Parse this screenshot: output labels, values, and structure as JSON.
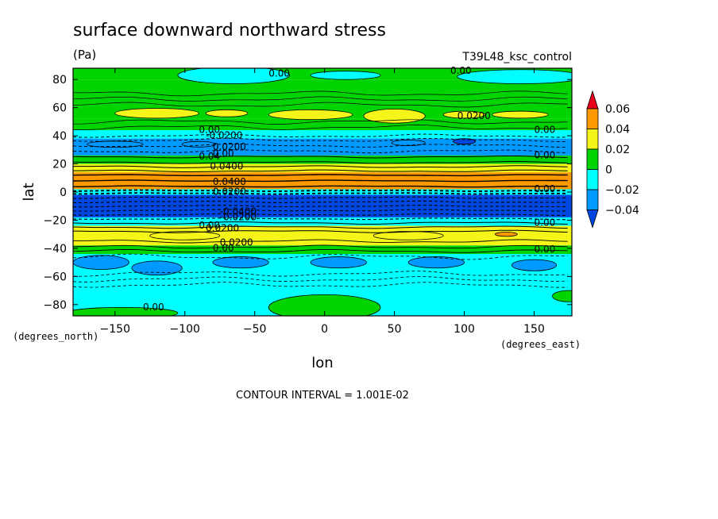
{
  "chart_data": {
    "type": "heatmap",
    "title": "surface downward northward stress",
    "units": "(Pa)",
    "dataset": "T39L48_ksc_control",
    "xlabel": "lon",
    "ylabel": "lat",
    "x_units": "(degrees_east)",
    "y_units": "(degrees_north)",
    "xlim": [
      -180,
      177
    ],
    "ylim": [
      -88,
      88
    ],
    "x_ticks": [
      -150,
      -100,
      -50,
      0,
      50,
      100,
      150
    ],
    "y_ticks": [
      -80,
      -60,
      -40,
      -20,
      0,
      20,
      40,
      60,
      80
    ],
    "footer": "CONTOUR INTERVAL = 1.001E-02",
    "colorbar": {
      "levels": [
        "0.06",
        "0.04",
        "0.02",
        "0",
        "−0.02",
        "−0.04"
      ],
      "colors": {
        "above_0.06": "#e8001c",
        "0.04_to_0.06": "#ff9900",
        "0.02_to_0.04": "#f5f51a",
        "0_to_0.02": "#00d400",
        "-0.02_to_0": "#00ffff",
        "-0.04_to_-0.02": "#0099ff",
        "below_-0.04": "#0047e0"
      }
    },
    "zonal_bands": [
      {
        "lat_range": [
          80,
          88
        ],
        "value": 0.01
      },
      {
        "lat_range": [
          64,
          80
        ],
        "value": 0.005
      },
      {
        "lat_range": [
          52,
          64
        ],
        "value": 0.02
      },
      {
        "lat_range": [
          44,
          52
        ],
        "value": 0.01
      },
      {
        "lat_range": [
          38,
          44
        ],
        "value": -0.005
      },
      {
        "lat_range": [
          26,
          38
        ],
        "value": -0.025
      },
      {
        "lat_range": [
          20,
          26
        ],
        "value": 0.005
      },
      {
        "lat_range": [
          14,
          20
        ],
        "value": 0.025
      },
      {
        "lat_range": [
          2,
          14
        ],
        "value": 0.045
      },
      {
        "lat_range": [
          -2,
          2
        ],
        "value": -0.01
      },
      {
        "lat_range": [
          -18,
          -2
        ],
        "value": -0.05
      },
      {
        "lat_range": [
          -24,
          -18
        ],
        "value": -0.01
      },
      {
        "lat_range": [
          -38,
          -24
        ],
        "value": 0.025
      },
      {
        "lat_range": [
          -44,
          -38
        ],
        "value": 0.005
      },
      {
        "lat_range": [
          -66,
          -44
        ],
        "value": -0.015
      },
      {
        "lat_range": [
          -88,
          -66
        ],
        "value": -0.005
      }
    ],
    "contour_labels": [
      {
        "text": "0.00",
        "lon": -40,
        "lat": 82
      },
      {
        "text": "0.00",
        "lon": 90,
        "lat": 84
      },
      {
        "text": "0.0200",
        "lon": 95,
        "lat": 52
      },
      {
        "text": "0.00",
        "lon": -90,
        "lat": 42
      },
      {
        "text": "-0.0200",
        "lon": -85,
        "lat": 38
      },
      {
        "text": "0.00",
        "lon": 150,
        "lat": 42
      },
      {
        "text": "0.0200",
        "lon": -80,
        "lat": 30
      },
      {
        "text": "0.04",
        "lon": -90,
        "lat": 23
      },
      {
        "text": "0.00",
        "lon": -80,
        "lat": 25
      },
      {
        "text": "0.0400",
        "lon": -82,
        "lat": 16
      },
      {
        "text": "0.00",
        "lon": 150,
        "lat": 24
      },
      {
        "text": "0.0400",
        "lon": -80,
        "lat": 5
      },
      {
        "text": "0.0200",
        "lon": -80,
        "lat": -2
      },
      {
        "text": "0.00",
        "lon": 150,
        "lat": 0
      },
      {
        "text": "-0.0400",
        "lon": -75,
        "lat": -16
      },
      {
        "text": "-0.0200",
        "lon": -75,
        "lat": -20
      },
      {
        "text": "0.00",
        "lon": -90,
        "lat": -26
      },
      {
        "text": "0.0200",
        "lon": -85,
        "lat": -28
      },
      {
        "text": "0.00",
        "lon": 150,
        "lat": -24
      },
      {
        "text": "0.0200",
        "lon": -75,
        "lat": -38
      },
      {
        "text": "0.00",
        "lon": -80,
        "lat": -42
      },
      {
        "text": "0.00",
        "lon": 150,
        "lat": -43
      },
      {
        "text": "0.00",
        "lon": -130,
        "lat": -84
      }
    ]
  }
}
